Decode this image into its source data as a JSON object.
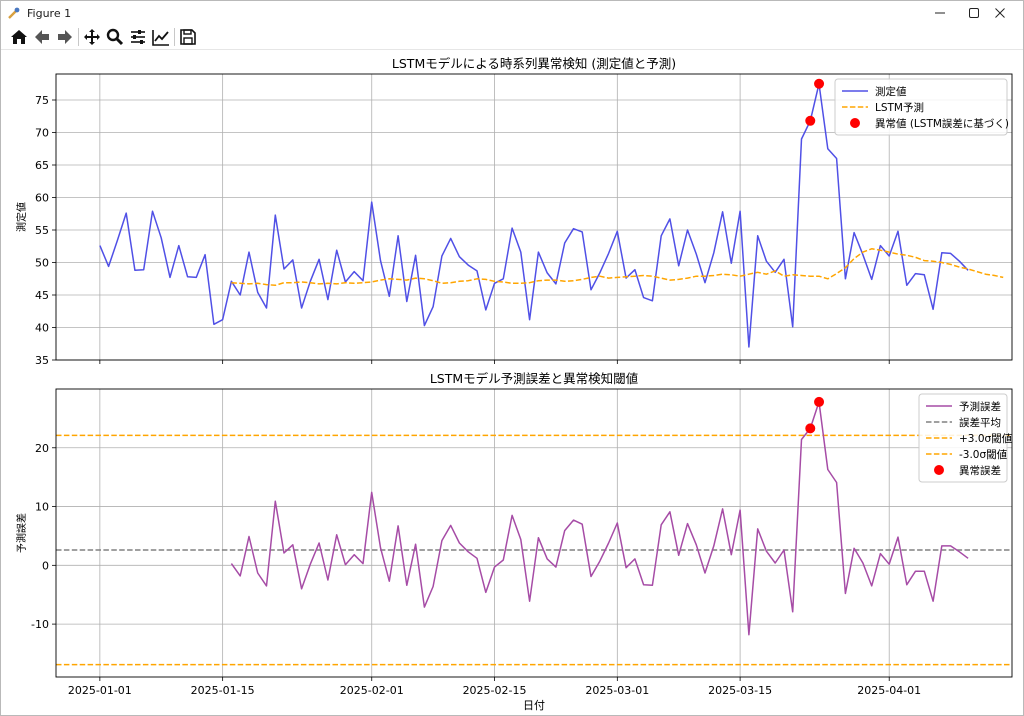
{
  "window": {
    "title": "Figure 1",
    "controls": [
      "minimize",
      "maximize",
      "close"
    ]
  },
  "toolbar": {
    "tools": [
      {
        "name": "home-icon",
        "label": "Home"
      },
      {
        "name": "back-icon",
        "label": "Back"
      },
      {
        "name": "forward-icon",
        "label": "Forward"
      },
      {
        "name": "pan-icon",
        "label": "Pan"
      },
      {
        "name": "zoom-icon",
        "label": "Zoom"
      },
      {
        "name": "subplots-icon",
        "label": "Configure subplots"
      },
      {
        "name": "axes-edit-icon",
        "label": "Edit axis"
      },
      {
        "name": "save-icon",
        "label": "Save"
      }
    ]
  },
  "chart_data": [
    {
      "type": "line",
      "title": "LSTMモデルによる時系列異常検知 (測定値と予測)",
      "xlabel": "",
      "ylabel": "測定値",
      "ylim": [
        35,
        79
      ],
      "yticks": [
        35,
        40,
        45,
        50,
        55,
        60,
        65,
        70,
        75
      ],
      "xticks": [
        "2025-01-01",
        "2025-01-15",
        "2025-02-01",
        "2025-02-15",
        "2025-03-01",
        "2025-03-15",
        "2025-04-01"
      ],
      "xtick_day_index": [
        0,
        14,
        31,
        45,
        59,
        73,
        90
      ],
      "xlim_days": [
        -5,
        104
      ],
      "grid": true,
      "legend_position": "top-right",
      "series": [
        {
          "name": "測定値",
          "color": "#5050e6",
          "style": "solid",
          "start_index": 0,
          "values": [
            52.6,
            49.4,
            53.4,
            57.6,
            48.8,
            48.9,
            57.9,
            53.8,
            47.7,
            52.6,
            47.8,
            47.7,
            51.2,
            40.5,
            41.2,
            47.1,
            45.0,
            51.6,
            45.4,
            43.0,
            57.3,
            49.0,
            50.4,
            43.0,
            47.1,
            50.5,
            44.3,
            51.9,
            47.0,
            48.6,
            47.2,
            59.3,
            50.3,
            44.8,
            54.1,
            44.0,
            51.1,
            40.3,
            43.2,
            51.0,
            53.7,
            50.9,
            49.6,
            48.7,
            42.7,
            46.8,
            47.5,
            55.3,
            51.6,
            41.2,
            51.6,
            48.4,
            46.7,
            53.0,
            55.2,
            54.7,
            45.8,
            48.4,
            51.4,
            54.8,
            47.6,
            48.9,
            44.6,
            44.1,
            54.1,
            56.7,
            49.5,
            55.0,
            51.3,
            46.9,
            51.5,
            57.8,
            49.9,
            57.9,
            37.0,
            54.1,
            50.2,
            48.5,
            50.5,
            40.1,
            69.0,
            71.8,
            77.5,
            67.5,
            66.0,
            47.5,
            54.6,
            51.2,
            47.4,
            52.6,
            51.0,
            54.8,
            46.5,
            48.3,
            48.1,
            42.8,
            51.5,
            51.4,
            50.2,
            48.8
          ]
        },
        {
          "name": "LSTM予測",
          "color": "#ffa500",
          "style": "dashed",
          "start_index": 15,
          "values": [
            46.9,
            46.8,
            46.7,
            46.8,
            46.6,
            46.5,
            46.9,
            46.9,
            47.0,
            46.9,
            46.7,
            46.8,
            46.7,
            46.9,
            46.8,
            46.9,
            47.0,
            47.3,
            47.5,
            47.4,
            47.3,
            47.6,
            47.5,
            47.2,
            46.8,
            46.9,
            47.1,
            47.2,
            47.5,
            47.4,
            47.1,
            47.0,
            46.8,
            46.8,
            46.9,
            47.2,
            47.3,
            47.3,
            47.1,
            47.2,
            47.4,
            47.7,
            47.9,
            47.6,
            47.7,
            47.8,
            47.9,
            48.0,
            47.9,
            47.6,
            47.3,
            47.4,
            47.6,
            47.9,
            47.9,
            48.0,
            48.2,
            48.1,
            47.9,
            48.2,
            48.5,
            48.2,
            48.7,
            47.9,
            48.1,
            48.0,
            47.9,
            47.9,
            47.5,
            48.3,
            49.2,
            50.6,
            51.6,
            52.1,
            51.9,
            51.6,
            51.3,
            51.1,
            50.8,
            50.3,
            50.2,
            50.0,
            49.7,
            49.3,
            49.0,
            48.6,
            48.2,
            48.0,
            47.7
          ]
        },
        {
          "name": "異常値 (LSTM誤差に基づく)",
          "color": "#ff0000",
          "style": "marker",
          "type": "scatter",
          "points": [
            {
              "x": 81,
              "y": 71.8
            },
            {
              "x": 82,
              "y": 77.5
            }
          ]
        }
      ]
    },
    {
      "type": "line",
      "title": "LSTMモデル予測誤差と異常検知閾値",
      "xlabel": "日付",
      "ylabel": "予測誤差",
      "ylim": [
        -19,
        30
      ],
      "yticks": [
        -10,
        0,
        10,
        20
      ],
      "xticks": [
        "2025-01-01",
        "2025-01-15",
        "2025-02-01",
        "2025-02-15",
        "2025-03-01",
        "2025-03-15",
        "2025-04-01"
      ],
      "xtick_day_index": [
        0,
        14,
        31,
        45,
        59,
        73,
        90
      ],
      "xlim_days": [
        -5,
        104
      ],
      "grid": true,
      "legend_position": "top-right",
      "series": [
        {
          "name": "予測誤差",
          "color": "#a64ca6",
          "style": "solid",
          "start_index": 15,
          "values": [
            0.3,
            -1.8,
            4.9,
            -1.3,
            -3.5,
            10.9,
            2.1,
            3.5,
            -4.0,
            0.2,
            3.8,
            -2.5,
            5.2,
            0.1,
            1.8,
            0.3,
            12.4,
            3.0,
            -2.7,
            6.7,
            -3.4,
            3.6,
            -7.1,
            -3.6,
            4.2,
            6.8,
            3.8,
            2.3,
            1.2,
            -4.6,
            -0.3,
            0.9,
            8.5,
            4.4,
            -6.1,
            4.7,
            1.1,
            -0.3,
            5.9,
            7.7,
            7.0,
            -1.9,
            0.7,
            3.8,
            7.2,
            -0.4,
            1.1,
            -3.3,
            -3.4,
            6.9,
            9.1,
            1.7,
            7.1,
            3.5,
            -1.3,
            3.3,
            9.6,
            1.8,
            9.4,
            -11.8,
            6.2,
            2.4,
            0.4,
            2.6,
            -7.9,
            21.4,
            23.3,
            27.8,
            16.3,
            14.1,
            -4.8,
            2.9,
            0.4,
            -3.5,
            2.0,
            0.2,
            4.8,
            -3.3,
            -1.0,
            -1.0,
            -6.1,
            3.3,
            3.3,
            2.3,
            1.2
          ]
        },
        {
          "name": "誤差平均",
          "color": "#808080",
          "style": "dashed",
          "value": 2.6
        },
        {
          "name": "+3.0σ閾値",
          "color": "#ffa500",
          "style": "dashed",
          "value": 22.1
        },
        {
          "name": "-3.0σ閾値",
          "color": "#ffa500",
          "style": "dashed",
          "value": -16.9
        },
        {
          "name": "異常誤差",
          "color": "#ff0000",
          "style": "marker",
          "type": "scatter",
          "points": [
            {
              "x": 81,
              "y": 23.3
            },
            {
              "x": 82,
              "y": 27.8
            }
          ]
        }
      ]
    }
  ]
}
